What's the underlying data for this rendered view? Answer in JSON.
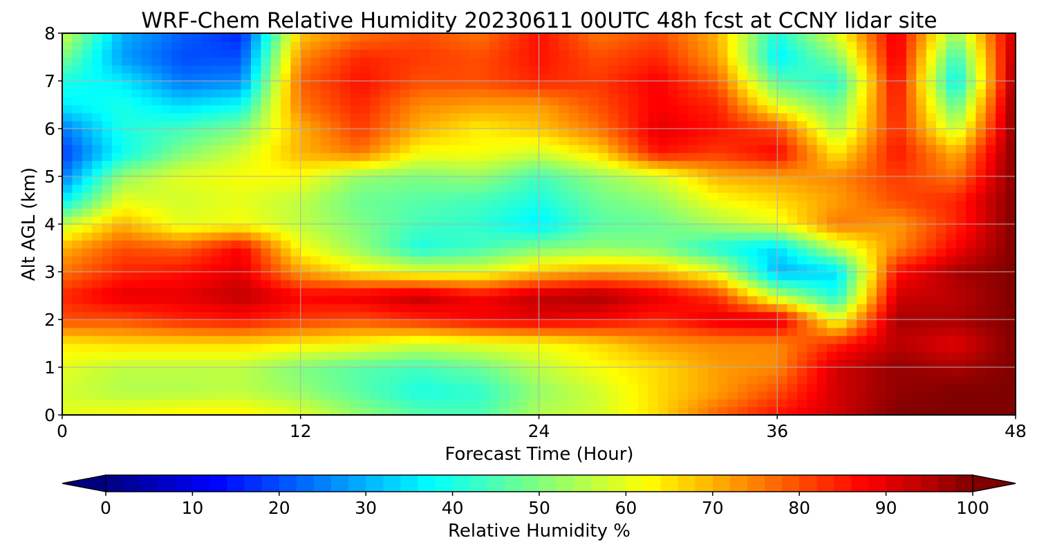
{
  "chart_data": {
    "type": "heatmap",
    "title": "WRF-Chem Relative Humidity 20230611 00UTC 48h fcst at CCNY lidar site",
    "xlabel": "Forecast Time (Hour)",
    "ylabel": "Alt AGL (km)",
    "xlim": [
      0,
      48
    ],
    "ylim": [
      0,
      8
    ],
    "xticks": [
      "0",
      "12",
      "24",
      "36",
      "48"
    ],
    "yticks": [
      "0",
      "1",
      "2",
      "3",
      "4",
      "5",
      "6",
      "7",
      "8"
    ],
    "grid": true,
    "colorbar": {
      "label": "Relative Humidity %",
      "ticks": [
        "0",
        "10",
        "20",
        "30",
        "40",
        "50",
        "60",
        "70",
        "80",
        "90",
        "100"
      ],
      "range": [
        0,
        100
      ],
      "colormap": "jet",
      "extend": "both"
    },
    "x": [
      0,
      3,
      6,
      9,
      12,
      15,
      18,
      21,
      24,
      27,
      30,
      33,
      36,
      39,
      42,
      45,
      48
    ],
    "y": [
      0,
      0.5,
      1,
      1.5,
      2,
      2.5,
      3,
      3.5,
      4,
      4.5,
      5,
      5.5,
      6,
      6.5,
      7,
      7.5,
      8
    ],
    "z": [
      [
        60,
        62,
        64,
        64,
        60,
        52,
        46,
        45,
        55,
        58,
        66,
        78,
        86,
        92,
        100,
        100,
        100
      ],
      [
        58,
        55,
        55,
        56,
        52,
        46,
        40,
        42,
        52,
        58,
        66,
        72,
        80,
        92,
        98,
        100,
        100
      ],
      [
        60,
        56,
        56,
        56,
        50,
        46,
        44,
        48,
        56,
        62,
        66,
        72,
        74,
        92,
        98,
        96,
        100
      ],
      [
        64,
        66,
        66,
        66,
        64,
        62,
        58,
        60,
        62,
        66,
        72,
        74,
        74,
        84,
        94,
        90,
        100
      ],
      [
        80,
        80,
        84,
        86,
        82,
        80,
        84,
        88,
        90,
        88,
        84,
        90,
        92,
        60,
        96,
        96,
        100
      ],
      [
        84,
        90,
        90,
        94,
        88,
        90,
        94,
        88,
        94,
        96,
        90,
        82,
        56,
        40,
        92,
        94,
        100
      ],
      [
        76,
        84,
        86,
        90,
        72,
        64,
        60,
        60,
        68,
        72,
        70,
        60,
        30,
        34,
        86,
        96,
        100
      ],
      [
        70,
        80,
        78,
        88,
        62,
        52,
        40,
        44,
        50,
        52,
        50,
        40,
        34,
        56,
        74,
        88,
        100
      ],
      [
        56,
        70,
        60,
        62,
        56,
        50,
        44,
        42,
        36,
        46,
        48,
        54,
        60,
        76,
        72,
        84,
        100
      ],
      [
        36,
        60,
        58,
        60,
        56,
        48,
        46,
        44,
        40,
        48,
        52,
        62,
        66,
        72,
        80,
        84,
        100
      ],
      [
        24,
        52,
        60,
        62,
        62,
        52,
        50,
        52,
        44,
        52,
        58,
        70,
        72,
        74,
        82,
        76,
        100
      ],
      [
        18,
        38,
        50,
        58,
        70,
        76,
        62,
        62,
        58,
        66,
        86,
        82,
        88,
        64,
        86,
        70,
        100
      ],
      [
        24,
        40,
        44,
        50,
        70,
        82,
        70,
        64,
        68,
        76,
        90,
        86,
        80,
        54,
        84,
        56,
        100
      ],
      [
        36,
        40,
        34,
        38,
        76,
        84,
        74,
        72,
        72,
        80,
        88,
        84,
        60,
        48,
        86,
        46,
        100
      ],
      [
        40,
        36,
        24,
        26,
        78,
        86,
        80,
        80,
        84,
        82,
        88,
        78,
        46,
        40,
        88,
        36,
        98
      ],
      [
        50,
        28,
        20,
        20,
        74,
        84,
        82,
        80,
        86,
        80,
        84,
        72,
        36,
        50,
        90,
        42,
        96
      ],
      [
        58,
        30,
        22,
        16,
        68,
        76,
        80,
        76,
        86,
        76,
        80,
        70,
        40,
        60,
        90,
        52,
        94
      ]
    ]
  }
}
